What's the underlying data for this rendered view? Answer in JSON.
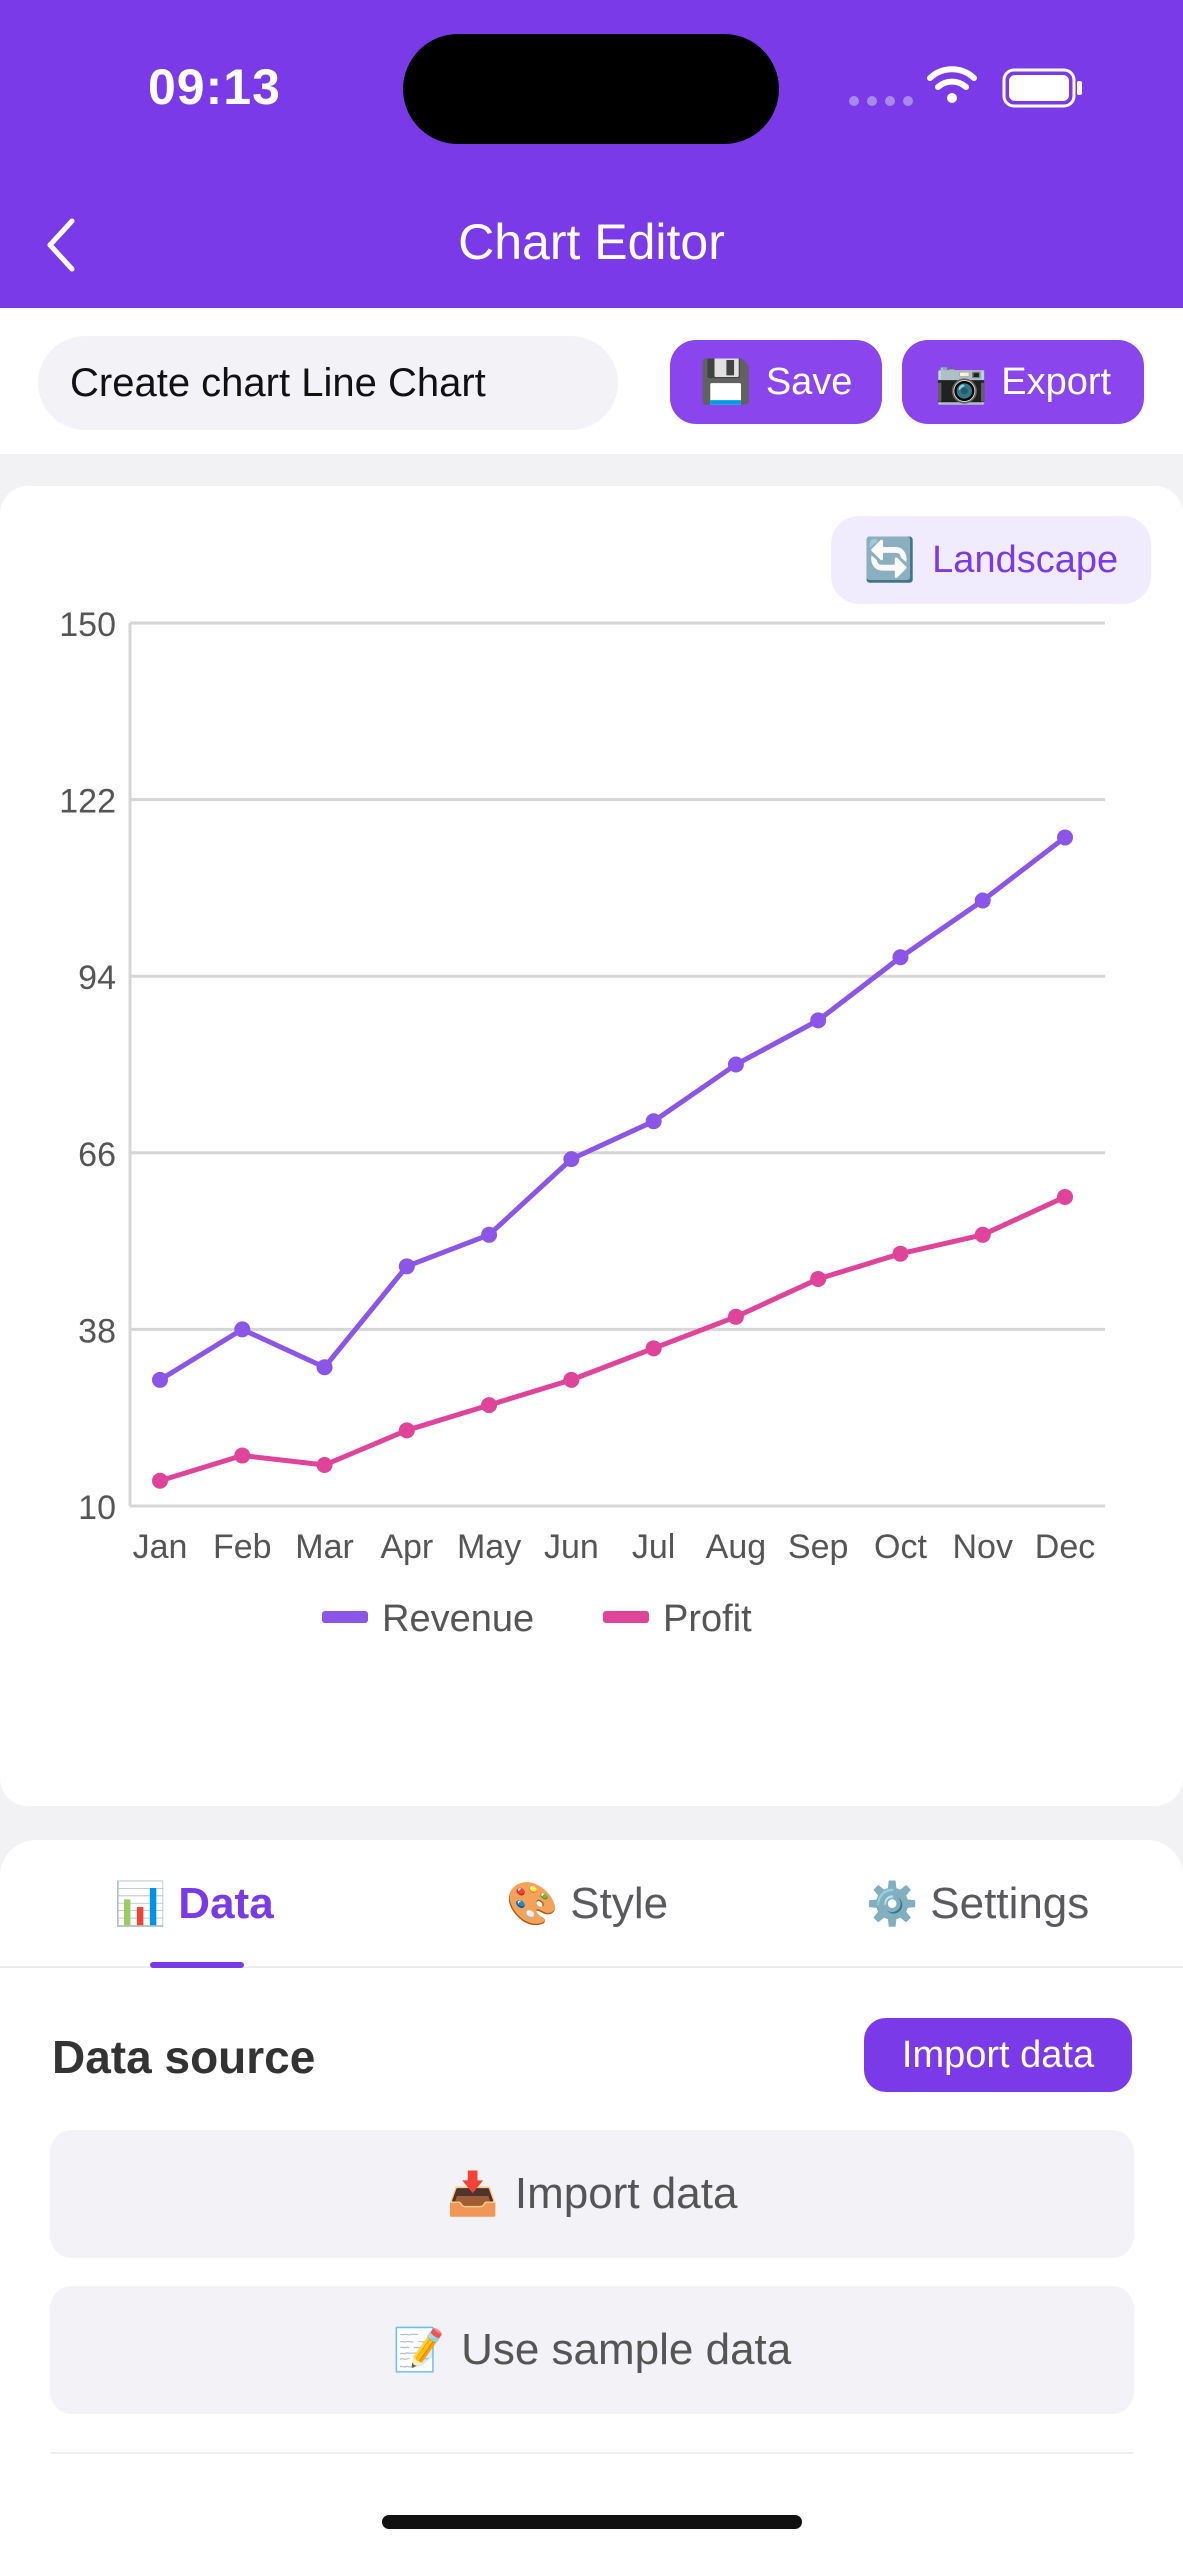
{
  "status_bar": {
    "time": "09:13"
  },
  "header": {
    "title": "Chart Editor"
  },
  "toolbar": {
    "chart_name": "Create chart Line Chart",
    "save_label": "Save",
    "save_icon": "💾",
    "export_label": "Export",
    "export_icon": "📷"
  },
  "chart_card": {
    "landscape_label": "Landscape",
    "landscape_icon": "🔄"
  },
  "chart_data": {
    "type": "line",
    "categories": [
      "Jan",
      "Feb",
      "Mar",
      "Apr",
      "May",
      "Jun",
      "Jul",
      "Aug",
      "Sep",
      "Oct",
      "Nov",
      "Dec"
    ],
    "series": [
      {
        "name": "Revenue",
        "color": "#8b55e8",
        "values": [
          30,
          38,
          32,
          48,
          53,
          65,
          71,
          80,
          87,
          97,
          106,
          116
        ]
      },
      {
        "name": "Profit",
        "color": "#e0449a",
        "values": [
          14,
          18,
          16.5,
          22,
          26,
          30,
          35,
          40,
          46,
          50,
          53,
          59
        ]
      }
    ],
    "yticks": [
      10,
      38,
      66,
      94,
      122,
      150
    ],
    "ylim": [
      10,
      150
    ],
    "grid": true,
    "legend": "bottom"
  },
  "tabs": [
    {
      "label": "Data",
      "icon": "📊"
    },
    {
      "label": "Style",
      "icon": "🎨"
    },
    {
      "label": "Settings",
      "icon": "⚙️"
    }
  ],
  "data_panel": {
    "section_title": "Data source",
    "import_button": "Import data",
    "options": [
      {
        "label": "Import data",
        "icon": "📥"
      },
      {
        "label": "Use sample data",
        "icon": "📝"
      }
    ]
  }
}
